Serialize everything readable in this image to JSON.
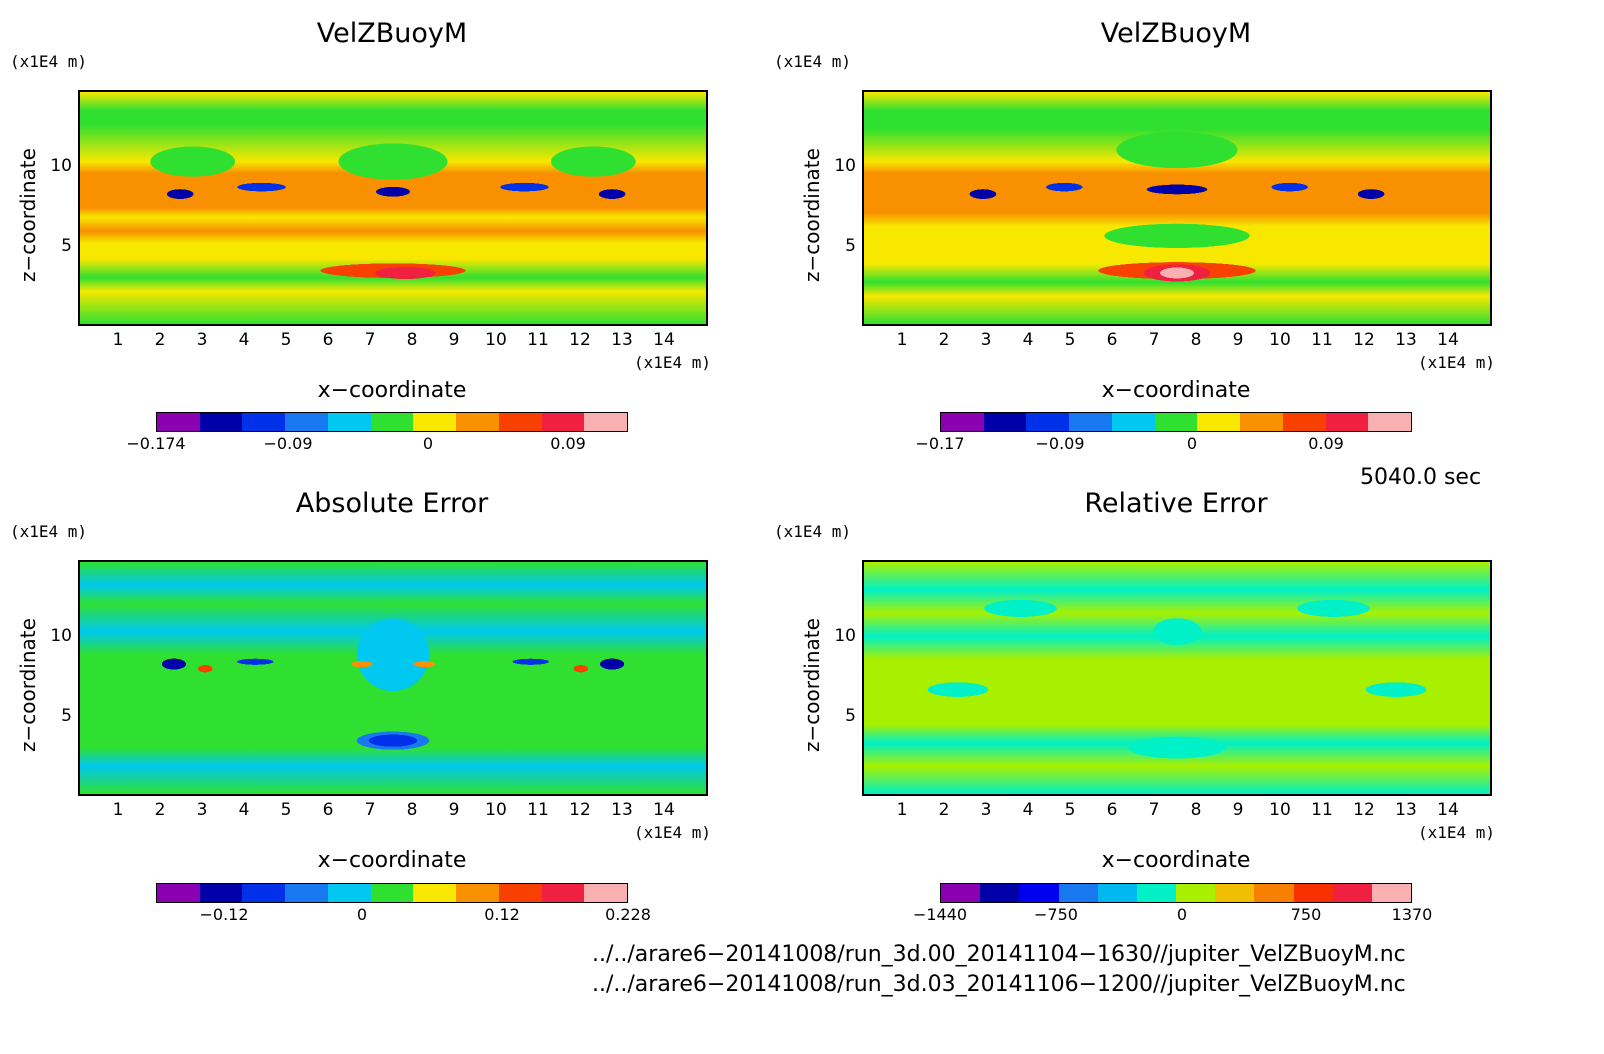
{
  "chart_data": [
    {
      "type": "heatmap",
      "title": "VelZBuoyM",
      "xlabel": "x−coordinate",
      "ylabel": "z−coordinate",
      "x_unit": "(x1E4 m)",
      "y_unit": "(x1E4 m)",
      "x_ticks": [
        "1",
        "2",
        "3",
        "4",
        "5",
        "6",
        "7",
        "8",
        "9",
        "10",
        "11",
        "12",
        "13",
        "14"
      ],
      "y_ticks": [
        "5",
        "10"
      ],
      "xlim": [
        0,
        15
      ],
      "ylim": [
        0,
        14.5
      ],
      "colorbar": {
        "colors": [
          "#8b00b0",
          "#0000a8",
          "#0030e8",
          "#1878f0",
          "#00c8f0",
          "#30e030",
          "#f8e800",
          "#f89000",
          "#f84000",
          "#f02040",
          "#f8b0b0"
        ],
        "tick_labels": [
          "−0.174",
          "−0.09",
          "0",
          "0.09"
        ],
        "tick_values": [
          -0.174,
          -0.09,
          0,
          0.09
        ],
        "range": [
          -0.174,
          0.1
        ]
      }
    },
    {
      "type": "heatmap",
      "title": "VelZBuoyM",
      "xlabel": "x−coordinate",
      "ylabel": "z−coordinate",
      "x_unit": "(x1E4 m)",
      "y_unit": "(x1E4 m)",
      "x_ticks": [
        "1",
        "2",
        "3",
        "4",
        "5",
        "6",
        "7",
        "8",
        "9",
        "10",
        "11",
        "12",
        "13",
        "14"
      ],
      "y_ticks": [
        "5",
        "10"
      ],
      "xlim": [
        0,
        15
      ],
      "ylim": [
        0,
        14.5
      ],
      "colorbar": {
        "colors": [
          "#8b00b0",
          "#0000a8",
          "#0030e8",
          "#1878f0",
          "#00c8f0",
          "#30e030",
          "#f8e800",
          "#f89000",
          "#f84000",
          "#f02040",
          "#f8b0b0"
        ],
        "tick_labels": [
          "−0.17",
          "−0.09",
          "0",
          "0.09"
        ],
        "tick_values": [
          -0.17,
          -0.09,
          0,
          0.09
        ],
        "range": [
          -0.17,
          0.13
        ]
      }
    },
    {
      "type": "heatmap",
      "title": "Absolute Error",
      "xlabel": "x−coordinate",
      "ylabel": "z−coordinate",
      "x_unit": "(x1E4 m)",
      "y_unit": "(x1E4 m)",
      "x_ticks": [
        "1",
        "2",
        "3",
        "4",
        "5",
        "6",
        "7",
        "8",
        "9",
        "10",
        "11",
        "12",
        "13",
        "14"
      ],
      "y_ticks": [
        "5",
        "10"
      ],
      "xlim": [
        0,
        15
      ],
      "ylim": [
        0,
        14.5
      ],
      "colorbar": {
        "colors": [
          "#8b00b0",
          "#0000a8",
          "#0030e8",
          "#1878f0",
          "#00c8f0",
          "#30e030",
          "#f8e800",
          "#f89000",
          "#f84000",
          "#f02040",
          "#f8b0b0"
        ],
        "tick_labels": [
          "−0.12",
          "0",
          "0.12",
          "0.228"
        ],
        "tick_values": [
          -0.12,
          0,
          0.12,
          0.228
        ],
        "range": [
          -0.19,
          0.228
        ]
      }
    },
    {
      "type": "heatmap",
      "title": "Relative Error",
      "xlabel": "x−coordinate",
      "ylabel": "z−coordinate",
      "x_unit": "(x1E4 m)",
      "y_unit": "(x1E4 m)",
      "x_ticks": [
        "1",
        "2",
        "3",
        "4",
        "5",
        "6",
        "7",
        "8",
        "9",
        "10",
        "11",
        "12",
        "13",
        "14"
      ],
      "y_ticks": [
        "5",
        "10"
      ],
      "xlim": [
        0,
        15
      ],
      "ylim": [
        0,
        14.5
      ],
      "colorbar": {
        "colors": [
          "#8b00b0",
          "#0000a8",
          "#0000f0",
          "#1878f0",
          "#00b8f0",
          "#00f0c8",
          "#a8f000",
          "#f0c000",
          "#f88000",
          "#f83000",
          "#f02040",
          "#f8b0b0"
        ],
        "tick_labels": [
          "−1440",
          "−750",
          "0",
          "750",
          "1370"
        ],
        "tick_values": [
          -1440,
          -750,
          0,
          750,
          1370
        ],
        "range": [
          -1440,
          1370
        ]
      }
    }
  ],
  "time_label": "5040.0 sec",
  "footer": {
    "line1": "../../arare6−20141008/run_3d.00_20141104−1630//jupiter_VelZBuoyM.nc",
    "line2": "../../arare6−20141008/run_3d.03_20141106−1200//jupiter_VelZBuoyM.nc"
  }
}
